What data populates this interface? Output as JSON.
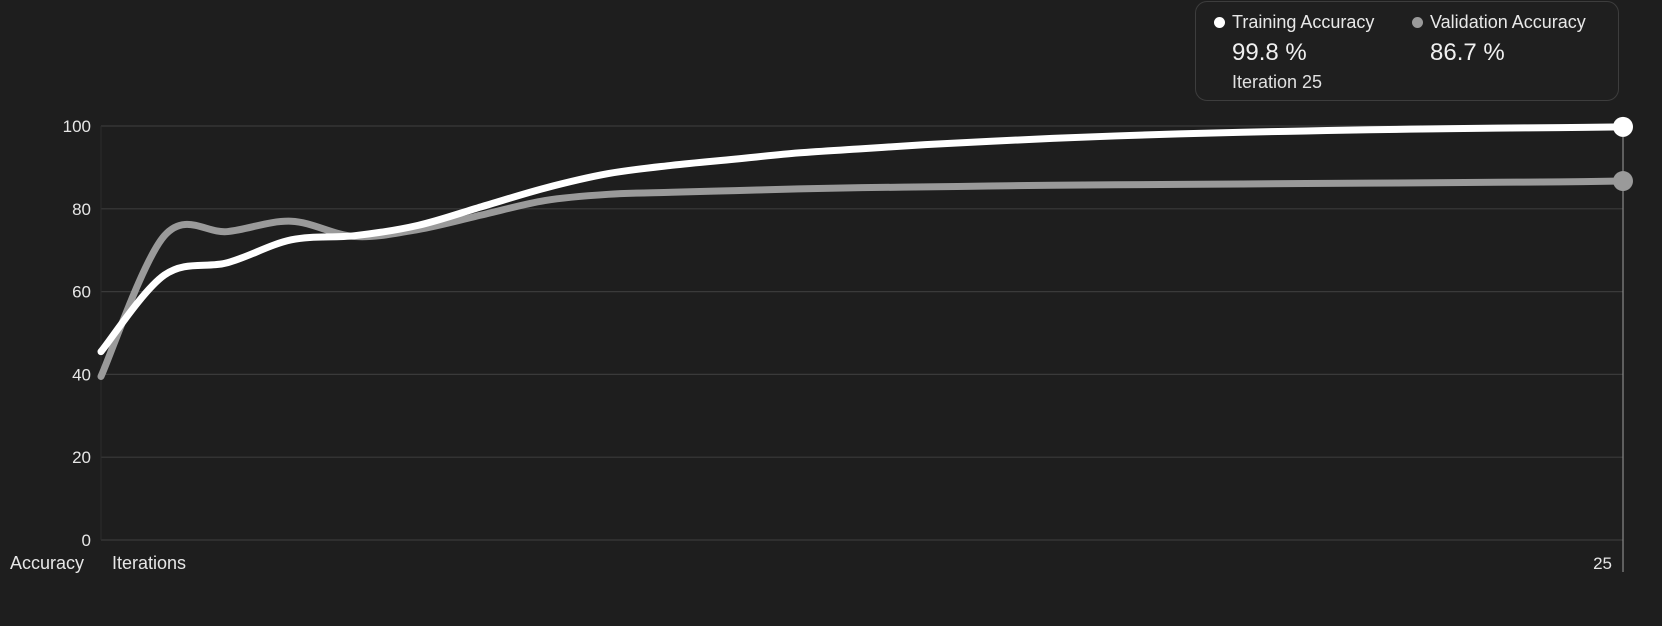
{
  "colors": {
    "background": "#1e1e1e",
    "grid": "#3a3a3a",
    "training": "#ffffff",
    "validation": "#9a9a9a"
  },
  "tooltip": {
    "training_label": "Training Accuracy",
    "training_value": "99.8 %",
    "validation_label": "Validation Accuracy",
    "validation_value": "86.7 %",
    "iteration_text": "Iteration 25"
  },
  "chart_data": {
    "type": "line",
    "ylabel": "Accuracy",
    "xlabel": "Iterations",
    "ylim": [
      0,
      100
    ],
    "xlim": [
      1,
      25
    ],
    "y_ticks": [
      0,
      20,
      40,
      60,
      80,
      100
    ],
    "x_tick_labels": [
      {
        "x": 25,
        "label": "25"
      }
    ],
    "grid": true,
    "legend": "top-right",
    "series": [
      {
        "name": "Training Accuracy",
        "color": "#ffffff",
        "x": [
          1,
          2,
          3,
          4,
          5,
          6,
          7,
          8,
          9,
          10,
          11,
          12,
          13,
          14,
          15,
          16,
          17,
          18,
          19,
          20,
          21,
          22,
          23,
          24,
          25
        ],
        "y": [
          45.5,
          64,
          67,
          72.5,
          73.5,
          76,
          80.5,
          85,
          88.5,
          90.5,
          92,
          93.5,
          94.5,
          95.5,
          96.3,
          97,
          97.6,
          98.1,
          98.5,
          98.8,
          99.1,
          99.3,
          99.5,
          99.6,
          99.8
        ]
      },
      {
        "name": "Validation Accuracy",
        "color": "#9a9a9a",
        "x": [
          1,
          2,
          3,
          4,
          5,
          6,
          7,
          8,
          9,
          10,
          11,
          12,
          13,
          14,
          15,
          16,
          17,
          18,
          19,
          20,
          21,
          22,
          23,
          24,
          25
        ],
        "y": [
          39.5,
          73.5,
          74.5,
          77,
          73.3,
          75,
          78.5,
          82,
          83.5,
          84,
          84.4,
          84.8,
          85.1,
          85.3,
          85.5,
          85.7,
          85.8,
          85.9,
          86,
          86.1,
          86.2,
          86.3,
          86.4,
          86.5,
          86.7
        ]
      }
    ]
  }
}
